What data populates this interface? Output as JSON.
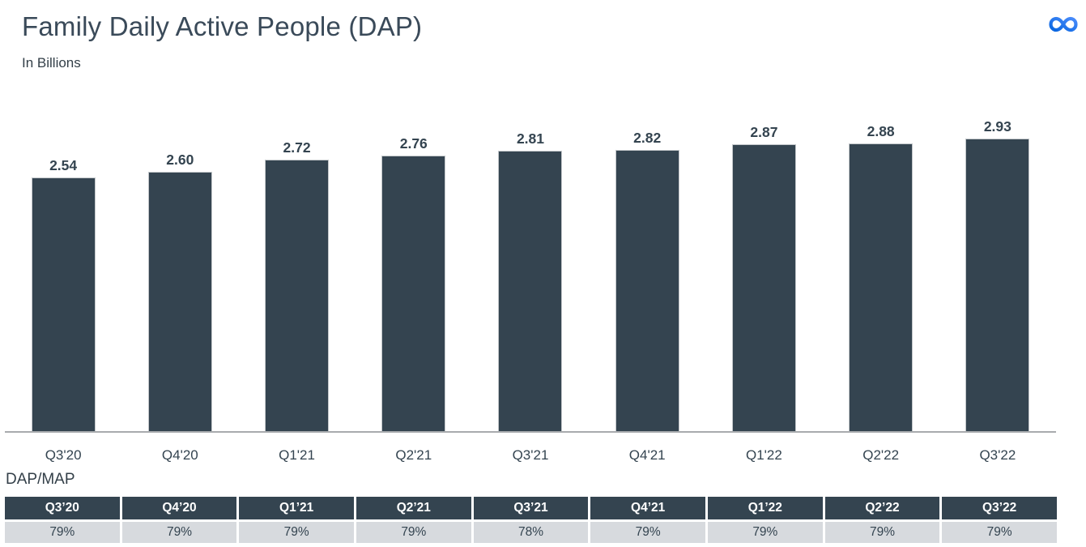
{
  "header": {
    "title": "Family Daily Active People (DAP)",
    "subtitle": "In Billions",
    "logo_icon": "meta-logo",
    "logo_color_start": "#0765e0",
    "logo_color_end": "#4a8cfb"
  },
  "chart_data": {
    "type": "bar",
    "title": "Family Daily Active People (DAP)",
    "ylabel": "In Billions",
    "xlabel": "",
    "categories": [
      "Q3'20",
      "Q4'20",
      "Q1'21",
      "Q2'21",
      "Q3'21",
      "Q4'21",
      "Q1'22",
      "Q2'22",
      "Q3'22"
    ],
    "values": [
      2.54,
      2.6,
      2.72,
      2.76,
      2.81,
      2.82,
      2.87,
      2.88,
      2.93
    ],
    "data_labels": [
      "2.54",
      "2.60",
      "2.72",
      "2.76",
      "2.81",
      "2.82",
      "2.87",
      "2.88",
      "2.93"
    ],
    "ylim": [
      0,
      2.93
    ],
    "grid": false,
    "legend": "none",
    "bar_color": "#344450",
    "baseline_color": "#a8abae"
  },
  "dap_map_table": {
    "label": "DAP/MAP",
    "type": "table",
    "columns": [
      "Q3’20",
      "Q4’20",
      "Q1’21",
      "Q2’21",
      "Q3’21",
      "Q4’21",
      "Q1’22",
      "Q2’22",
      "Q3’22"
    ],
    "values": [
      "79%",
      "79%",
      "79%",
      "79%",
      "78%",
      "79%",
      "79%",
      "79%",
      "79%"
    ],
    "header_bg": "#344450",
    "header_text_color": "#ffffff",
    "row_bg": "#d7dade"
  }
}
